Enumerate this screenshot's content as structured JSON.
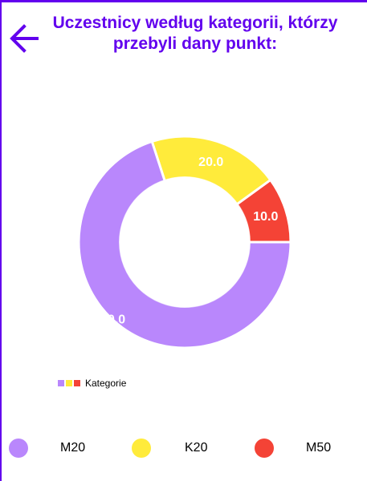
{
  "header": {
    "title": "Uczestnicy według kategorii, którzy przebyli dany punkt:",
    "back_icon": "arrow-left-icon",
    "accent": "#6200ee"
  },
  "chart_data": {
    "type": "pie",
    "donut": true,
    "categories": [
      "M20",
      "K20",
      "M50"
    ],
    "values": [
      70.0,
      20.0,
      10.0
    ],
    "value_labels": [
      "70.0",
      "20.0",
      "10.0"
    ],
    "colors": [
      "#b987fc",
      "#ffeb3b",
      "#f44336"
    ],
    "legend_title": "Kategorie",
    "legend_placement": "bottom-left"
  },
  "categories_list": [
    {
      "label": "M20",
      "color": "#b987fc"
    },
    {
      "label": "K20",
      "color": "#ffeb3b"
    },
    {
      "label": "M50",
      "color": "#f44336"
    }
  ]
}
